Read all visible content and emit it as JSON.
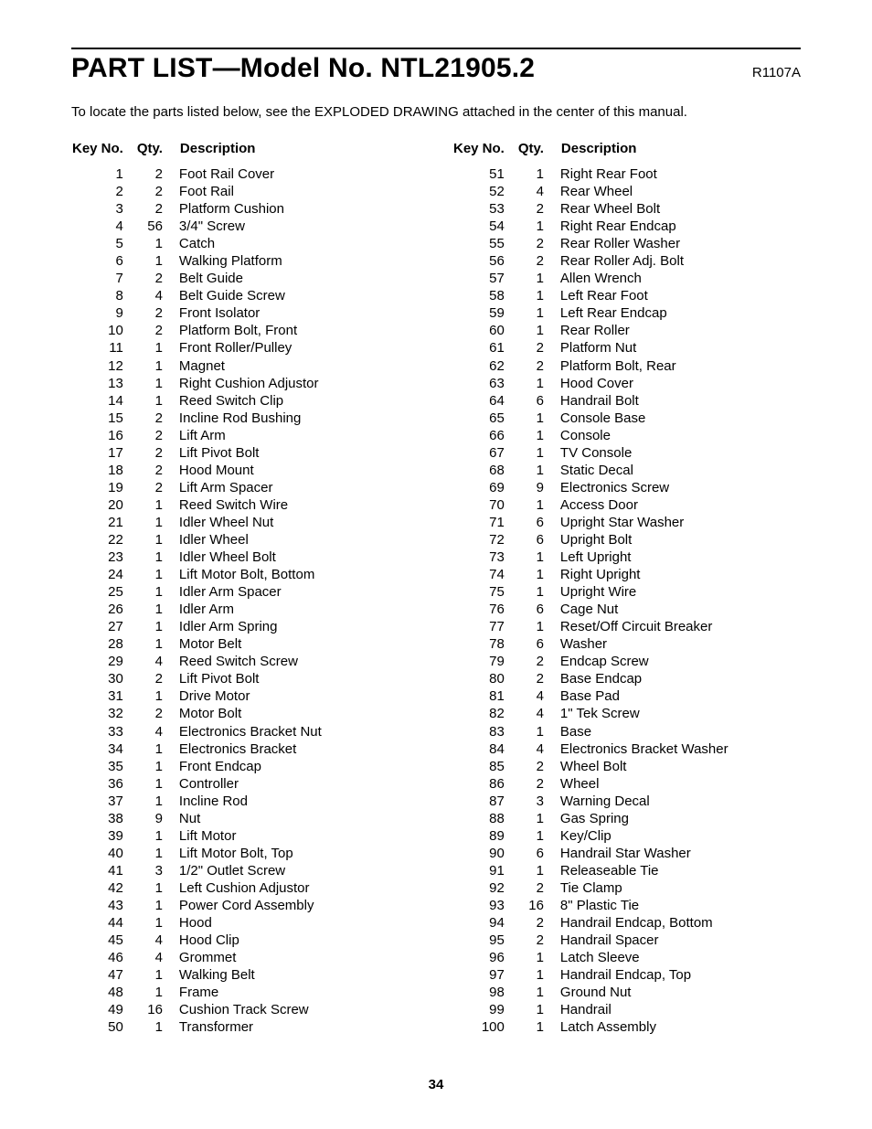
{
  "header": {
    "title": "PART LIST—Model No. NTL21905.2",
    "doc_code": "R1107A",
    "subtitle": "To locate the parts listed below, see the EXPLODED DRAWING attached in the center of this manual."
  },
  "table": {
    "headers": {
      "key": "Key No.",
      "qty": "Qty.",
      "desc": "Description"
    }
  },
  "page_number": "34",
  "parts_left": [
    {
      "key": "1",
      "qty": "2",
      "desc": "Foot Rail Cover"
    },
    {
      "key": "2",
      "qty": "2",
      "desc": "Foot Rail"
    },
    {
      "key": "3",
      "qty": "2",
      "desc": "Platform Cushion"
    },
    {
      "key": "4",
      "qty": "56",
      "desc": "3/4\" Screw"
    },
    {
      "key": "5",
      "qty": "1",
      "desc": "Catch"
    },
    {
      "key": "6",
      "qty": "1",
      "desc": "Walking Platform"
    },
    {
      "key": "7",
      "qty": "2",
      "desc": "Belt Guide"
    },
    {
      "key": "8",
      "qty": "4",
      "desc": "Belt Guide Screw"
    },
    {
      "key": "9",
      "qty": "2",
      "desc": "Front Isolator"
    },
    {
      "key": "10",
      "qty": "2",
      "desc": "Platform Bolt, Front"
    },
    {
      "key": "11",
      "qty": "1",
      "desc": "Front Roller/Pulley"
    },
    {
      "key": "12",
      "qty": "1",
      "desc": "Magnet"
    },
    {
      "key": "13",
      "qty": "1",
      "desc": "Right Cushion Adjustor"
    },
    {
      "key": "14",
      "qty": "1",
      "desc": "Reed Switch Clip"
    },
    {
      "key": "15",
      "qty": "2",
      "desc": "Incline Rod Bushing"
    },
    {
      "key": "16",
      "qty": "2",
      "desc": "Lift Arm"
    },
    {
      "key": "17",
      "qty": "2",
      "desc": "Lift Pivot Bolt"
    },
    {
      "key": "18",
      "qty": "2",
      "desc": "Hood Mount"
    },
    {
      "key": "19",
      "qty": "2",
      "desc": "Lift Arm Spacer"
    },
    {
      "key": "20",
      "qty": "1",
      "desc": "Reed Switch Wire"
    },
    {
      "key": "21",
      "qty": "1",
      "desc": "Idler Wheel Nut"
    },
    {
      "key": "22",
      "qty": "1",
      "desc": "Idler Wheel"
    },
    {
      "key": "23",
      "qty": "1",
      "desc": "Idler Wheel Bolt"
    },
    {
      "key": "24",
      "qty": "1",
      "desc": "Lift Motor Bolt, Bottom"
    },
    {
      "key": "25",
      "qty": "1",
      "desc": "Idler Arm Spacer"
    },
    {
      "key": "26",
      "qty": "1",
      "desc": "Idler Arm"
    },
    {
      "key": "27",
      "qty": "1",
      "desc": "Idler Arm Spring"
    },
    {
      "key": "28",
      "qty": "1",
      "desc": "Motor Belt"
    },
    {
      "key": "29",
      "qty": "4",
      "desc": "Reed Switch Screw"
    },
    {
      "key": "30",
      "qty": "2",
      "desc": "Lift Pivot Bolt"
    },
    {
      "key": "31",
      "qty": "1",
      "desc": "Drive Motor"
    },
    {
      "key": "32",
      "qty": "2",
      "desc": "Motor Bolt"
    },
    {
      "key": "33",
      "qty": "4",
      "desc": "Electronics Bracket Nut"
    },
    {
      "key": "34",
      "qty": "1",
      "desc": "Electronics Bracket"
    },
    {
      "key": "35",
      "qty": "1",
      "desc": "Front Endcap"
    },
    {
      "key": "36",
      "qty": "1",
      "desc": "Controller"
    },
    {
      "key": "37",
      "qty": "1",
      "desc": "Incline Rod"
    },
    {
      "key": "38",
      "qty": "9",
      "desc": "Nut"
    },
    {
      "key": "39",
      "qty": "1",
      "desc": "Lift Motor"
    },
    {
      "key": "40",
      "qty": "1",
      "desc": "Lift Motor Bolt, Top"
    },
    {
      "key": "41",
      "qty": "3",
      "desc": "1/2\" Outlet Screw"
    },
    {
      "key": "42",
      "qty": "1",
      "desc": "Left Cushion Adjustor"
    },
    {
      "key": "43",
      "qty": "1",
      "desc": "Power Cord Assembly"
    },
    {
      "key": "44",
      "qty": "1",
      "desc": "Hood"
    },
    {
      "key": "45",
      "qty": "4",
      "desc": "Hood Clip"
    },
    {
      "key": "46",
      "qty": "4",
      "desc": "Grommet"
    },
    {
      "key": "47",
      "qty": "1",
      "desc": "Walking Belt"
    },
    {
      "key": "48",
      "qty": "1",
      "desc": "Frame"
    },
    {
      "key": "49",
      "qty": "16",
      "desc": "Cushion Track Screw"
    },
    {
      "key": "50",
      "qty": "1",
      "desc": "Transformer"
    }
  ],
  "parts_right": [
    {
      "key": "51",
      "qty": "1",
      "desc": "Right Rear Foot"
    },
    {
      "key": "52",
      "qty": "4",
      "desc": "Rear Wheel"
    },
    {
      "key": "53",
      "qty": "2",
      "desc": "Rear Wheel Bolt"
    },
    {
      "key": "54",
      "qty": "1",
      "desc": "Right Rear Endcap"
    },
    {
      "key": "55",
      "qty": "2",
      "desc": "Rear Roller Washer"
    },
    {
      "key": "56",
      "qty": "2",
      "desc": "Rear Roller Adj. Bolt"
    },
    {
      "key": "57",
      "qty": "1",
      "desc": "Allen Wrench"
    },
    {
      "key": "58",
      "qty": "1",
      "desc": "Left Rear Foot"
    },
    {
      "key": "59",
      "qty": "1",
      "desc": "Left Rear Endcap"
    },
    {
      "key": "60",
      "qty": "1",
      "desc": "Rear Roller"
    },
    {
      "key": "61",
      "qty": "2",
      "desc": "Platform Nut"
    },
    {
      "key": "62",
      "qty": "2",
      "desc": "Platform Bolt, Rear"
    },
    {
      "key": "63",
      "qty": "1",
      "desc": "Hood Cover"
    },
    {
      "key": "64",
      "qty": "6",
      "desc": "Handrail Bolt"
    },
    {
      "key": "65",
      "qty": "1",
      "desc": "Console Base"
    },
    {
      "key": "66",
      "qty": "1",
      "desc": "Console"
    },
    {
      "key": "67",
      "qty": "1",
      "desc": "TV Console"
    },
    {
      "key": "68",
      "qty": "1",
      "desc": "Static Decal"
    },
    {
      "key": "69",
      "qty": "9",
      "desc": "Electronics Screw"
    },
    {
      "key": "70",
      "qty": "1",
      "desc": "Access Door"
    },
    {
      "key": "71",
      "qty": "6",
      "desc": "Upright Star Washer"
    },
    {
      "key": "72",
      "qty": "6",
      "desc": "Upright Bolt"
    },
    {
      "key": "73",
      "qty": "1",
      "desc": "Left Upright"
    },
    {
      "key": "74",
      "qty": "1",
      "desc": "Right Upright"
    },
    {
      "key": "75",
      "qty": "1",
      "desc": "Upright Wire"
    },
    {
      "key": "76",
      "qty": "6",
      "desc": "Cage Nut"
    },
    {
      "key": "77",
      "qty": "1",
      "desc": "Reset/Off Circuit Breaker"
    },
    {
      "key": "78",
      "qty": "6",
      "desc": "Washer"
    },
    {
      "key": "79",
      "qty": "2",
      "desc": "Endcap Screw"
    },
    {
      "key": "80",
      "qty": "2",
      "desc": "Base Endcap"
    },
    {
      "key": "81",
      "qty": "4",
      "desc": "Base Pad"
    },
    {
      "key": "82",
      "qty": "4",
      "desc": "1\" Tek Screw"
    },
    {
      "key": "83",
      "qty": "1",
      "desc": "Base"
    },
    {
      "key": "84",
      "qty": "4",
      "desc": "Electronics Bracket Washer"
    },
    {
      "key": "85",
      "qty": "2",
      "desc": "Wheel Bolt"
    },
    {
      "key": "86",
      "qty": "2",
      "desc": "Wheel"
    },
    {
      "key": "87",
      "qty": "3",
      "desc": "Warning Decal"
    },
    {
      "key": "88",
      "qty": "1",
      "desc": "Gas Spring"
    },
    {
      "key": "89",
      "qty": "1",
      "desc": "Key/Clip"
    },
    {
      "key": "90",
      "qty": "6",
      "desc": "Handrail Star Washer"
    },
    {
      "key": "91",
      "qty": "1",
      "desc": "Releaseable Tie"
    },
    {
      "key": "92",
      "qty": "2",
      "desc": "Tie Clamp"
    },
    {
      "key": "93",
      "qty": "16",
      "desc": "8\" Plastic Tie"
    },
    {
      "key": "94",
      "qty": "2",
      "desc": "Handrail Endcap, Bottom"
    },
    {
      "key": "95",
      "qty": "2",
      "desc": "Handrail Spacer"
    },
    {
      "key": "96",
      "qty": "1",
      "desc": "Latch Sleeve"
    },
    {
      "key": "97",
      "qty": "1",
      "desc": "Handrail Endcap, Top"
    },
    {
      "key": "98",
      "qty": "1",
      "desc": "Ground Nut"
    },
    {
      "key": "99",
      "qty": "1",
      "desc": "Handrail"
    },
    {
      "key": "100",
      "qty": "1",
      "desc": "Latch Assembly"
    }
  ]
}
